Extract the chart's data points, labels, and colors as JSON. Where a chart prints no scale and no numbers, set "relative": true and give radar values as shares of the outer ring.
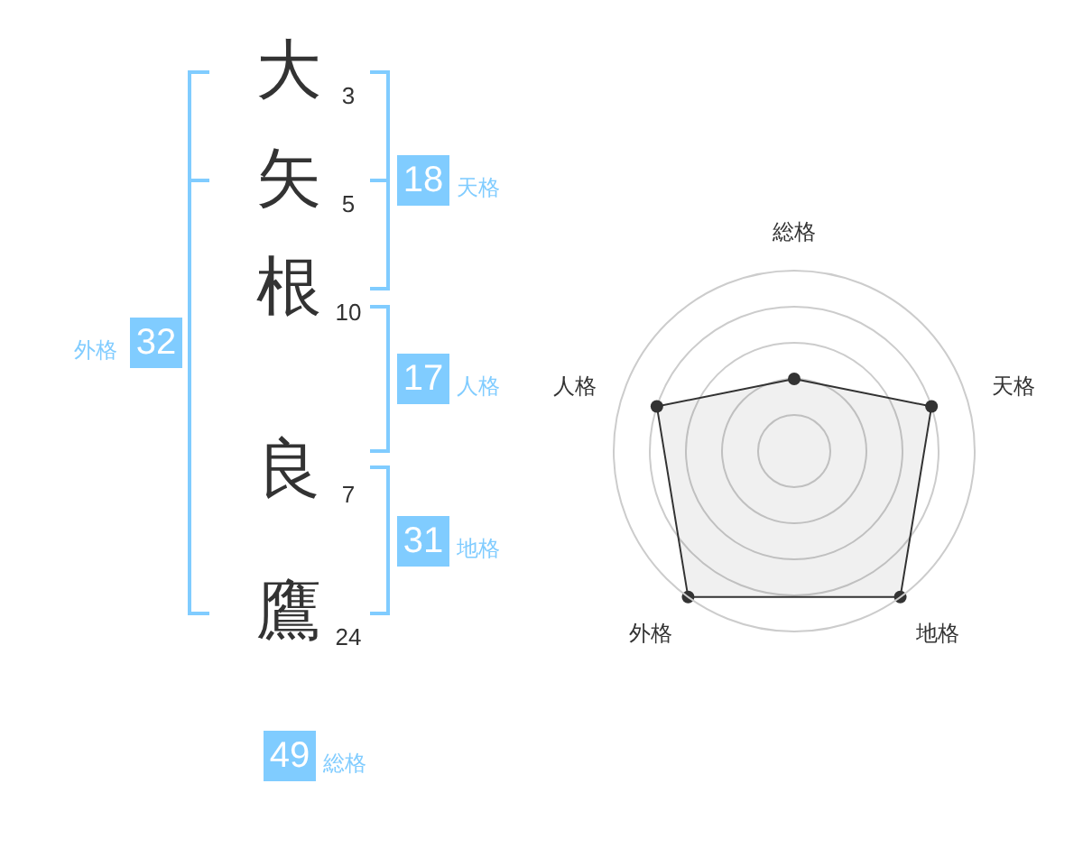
{
  "chart_data": [
    {
      "type": "other",
      "categories": [
        "大",
        "矢",
        "根",
        "良",
        "鷹"
      ],
      "values": [
        3,
        5,
        10,
        7,
        24
      ],
      "data_labels": true
    },
    {
      "type": "other",
      "categories": [
        "天格",
        "人格",
        "地格",
        "外格",
        "総格"
      ],
      "values": [
        18,
        17,
        31,
        32,
        49
      ],
      "color": "#80ccff",
      "data_labels": true
    },
    {
      "type": "radar",
      "categories": [
        "総格",
        "天格",
        "地格",
        "外格",
        "人格"
      ],
      "relative": true,
      "grid": true,
      "marker": "circle",
      "series": [
        {
          "color": "#333333",
          "values": [
            0.4,
            0.8,
            1,
            1,
            0.8
          ]
        }
      ]
    }
  ]
}
